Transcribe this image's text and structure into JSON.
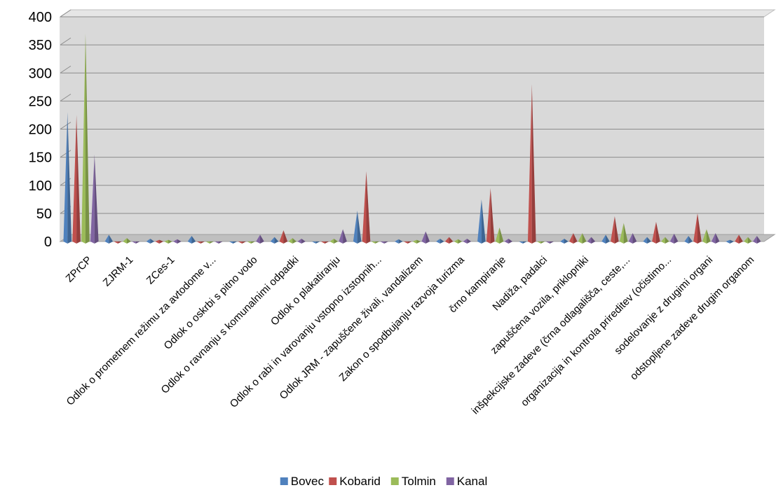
{
  "chart_data": {
    "type": "bar",
    "style": "3d-pyramid",
    "ylim": [
      0,
      400
    ],
    "yticks": [
      0,
      50,
      100,
      150,
      200,
      250,
      300,
      350,
      400
    ],
    "grid": true,
    "legend_position": "bottom",
    "categories": [
      "ZPrCP",
      "ZJRM-1",
      "ZCes-1",
      "Odlok o prometnem režimu za avtodome v...",
      "Odlok o oskrbi s pitno vodo",
      "Odlok o ravnanju s komunalnimi odpadki",
      "Odlok o plakatiranju",
      "Odlok o rabi in varovanju vstopno izstopnih...",
      "Odlok JRM - zapuščene živali, vandalizem",
      "Zakon o spodbujanju razvoja turizma",
      "črno kampiranje",
      "Nadiža, padalci",
      "zapuščena vozila, priklopniki",
      "inšpekcijske zadeve (črna odlagališča, ceste,...",
      "organizacija in kontrola prireditev (očistimo...",
      "sodelovanje z drugimi organi",
      "odstopljene zadeve drugim organom"
    ],
    "series": [
      {
        "name": "Bovec",
        "color": "#4F81BD",
        "values": [
          230,
          12,
          5,
          10,
          0,
          8,
          0,
          55,
          4,
          5,
          75,
          0,
          5,
          12,
          8,
          10,
          3
        ]
      },
      {
        "name": "Kobarid",
        "color": "#C0504D",
        "values": [
          225,
          0,
          3,
          0,
          0,
          20,
          0,
          125,
          0,
          8,
          95,
          280,
          15,
          45,
          35,
          50,
          12
        ]
      },
      {
        "name": "Tolmin",
        "color": "#9BBB59",
        "values": [
          370,
          6,
          3,
          0,
          0,
          6,
          5,
          0,
          3,
          4,
          25,
          0,
          15,
          33,
          8,
          22,
          8
        ]
      },
      {
        "name": "Kanal",
        "color": "#8064A2",
        "values": [
          155,
          0,
          4,
          0,
          12,
          5,
          22,
          0,
          18,
          5,
          5,
          0,
          8,
          15,
          14,
          15,
          10
        ]
      }
    ]
  }
}
